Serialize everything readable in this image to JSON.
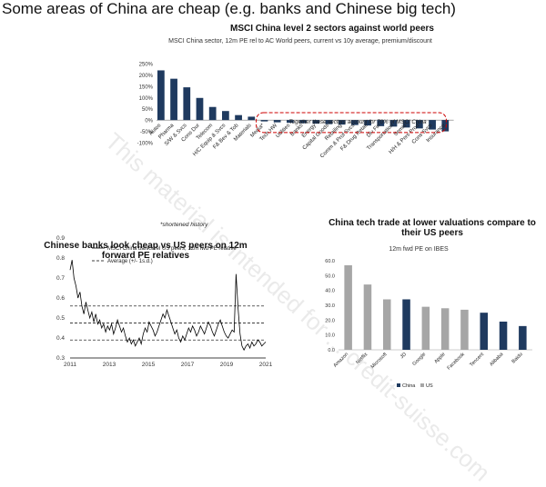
{
  "slide_title": "Some areas of China are cheap (e.g. banks and Chinese big tech)",
  "watermark": "This material is intended for ... credit-suisse.com",
  "colors": {
    "navy": "#1f3a5f",
    "gray": "#a6a6a6",
    "red": "#cc0000"
  },
  "chart_data": [
    {
      "type": "bar",
      "title": "MSCI China level 2 sectors against world peers",
      "subtitle": "MSCI China sector, 12m PE rel to AC World peers, current vs 10y average, premium/discount",
      "categories": [
        "Autos",
        "Pharma",
        "S/W & Svcs",
        "Cons Dur",
        "Telecom",
        "H/C Equip & Svcs",
        "F& Bev & Tob",
        "Materials",
        "Media*",
        "Tech HW",
        "Utilities",
        "Banks",
        "Energy",
        "Capital Goods",
        "Retailing",
        "Comm & Prof Svcs",
        "F& Drug Retail",
        "Div Fin",
        "Transportation",
        "Semis",
        "H/H & Pers Prod",
        "Cons Svcs",
        "Insurance"
      ],
      "values": [
        220,
        183,
        145,
        98,
        58,
        40,
        22,
        15,
        -6,
        -10,
        -12,
        -14,
        -16,
        -18,
        -20,
        -22,
        -24,
        -27,
        -29,
        -33,
        -37,
        -42,
        -50
      ],
      "ylim": [
        -100,
        250
      ],
      "yticks": [
        "250%",
        "200%",
        "150%",
        "100%",
        "50%",
        "0%",
        "-50%",
        "-100%"
      ],
      "annotation": "Together these sectors account for 70% of MSCI China",
      "footnote": "*shortened history"
    },
    {
      "type": "line",
      "title": "Chinese banks look cheap vs US peers on 12m forward PE relatives",
      "legend": [
        "MSCI China banks rel US peers, 12m fwd PE relative",
        "Average (+/- 1s.d.)"
      ],
      "x_start": 2011.0,
      "x_end": 2021.0,
      "series": [
        {
          "name": "MSCI China banks rel US peers, 12m fwd PE relative",
          "values": [
            0.74,
            0.79,
            0.7,
            0.66,
            0.6,
            0.63,
            0.56,
            0.52,
            0.58,
            0.54,
            0.5,
            0.53,
            0.48,
            0.52,
            0.47,
            0.49,
            0.45,
            0.47,
            0.43,
            0.46,
            0.44,
            0.47,
            0.42,
            0.45,
            0.49,
            0.46,
            0.43,
            0.45,
            0.41,
            0.38,
            0.4,
            0.37,
            0.39,
            0.36,
            0.38,
            0.4,
            0.37,
            0.42,
            0.45,
            0.43,
            0.48,
            0.46,
            0.44,
            0.41,
            0.43,
            0.46,
            0.49,
            0.52,
            0.5,
            0.54,
            0.51,
            0.48,
            0.45,
            0.42,
            0.44,
            0.4,
            0.38,
            0.41,
            0.39,
            0.42,
            0.45,
            0.43,
            0.46,
            0.44,
            0.41,
            0.43,
            0.46,
            0.44,
            0.42,
            0.45,
            0.48,
            0.46,
            0.43,
            0.41,
            0.44,
            0.47,
            0.49,
            0.46,
            0.43,
            0.41,
            0.4,
            0.42,
            0.44,
            0.43,
            0.72,
            0.55,
            0.42,
            0.36,
            0.34,
            0.36,
            0.37,
            0.35,
            0.38,
            0.36,
            0.37,
            0.39,
            0.38,
            0.36,
            0.37,
            0.38
          ]
        }
      ],
      "averages": [
        0.56,
        0.475,
        0.39
      ],
      "ylim": [
        0.3,
        0.9
      ],
      "yticks": [
        "0.9",
        "0.8",
        "0.7",
        "0.6",
        "0.5",
        "0.4",
        "0.3"
      ],
      "xticks": [
        "2011",
        "2013",
        "2015",
        "2017",
        "2019",
        "2021"
      ]
    },
    {
      "type": "bar",
      "title": "China tech trade at lower valuations compare to their US peers",
      "subtitle": "12m fwd PE on IBES",
      "categories": [
        "Amazon",
        "Netflix",
        "Microsoft",
        "JD",
        "Google",
        "Apple",
        "Facebook",
        "Tencent",
        "Alibaba",
        "Baidu"
      ],
      "values": [
        57,
        44,
        34,
        34,
        29,
        28,
        27,
        25,
        19,
        16
      ],
      "group": [
        "US",
        "US",
        "US",
        "China",
        "US",
        "US",
        "US",
        "China",
        "China",
        "China"
      ],
      "legend": [
        "China",
        "US"
      ],
      "ylim": [
        0,
        60
      ],
      "yticks": [
        "60.0",
        "50.0",
        "40.0",
        "30.0",
        "20.0",
        "10.0",
        "0.0"
      ]
    }
  ]
}
